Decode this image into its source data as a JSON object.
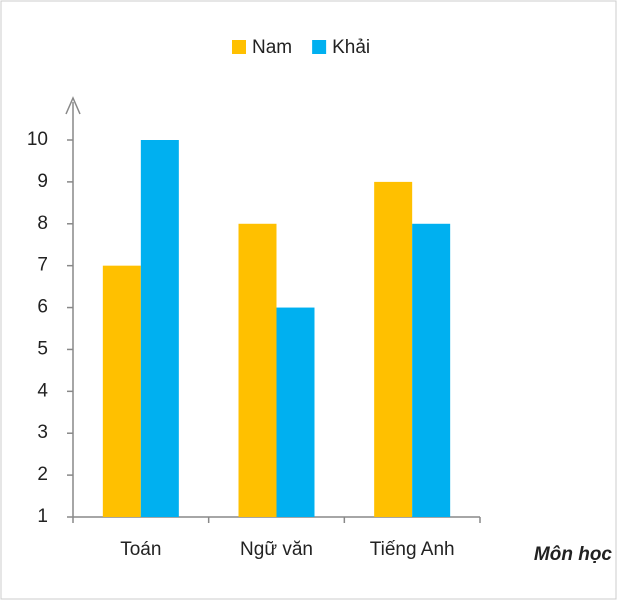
{
  "chart_data": {
    "type": "bar",
    "categories": [
      "Toán",
      "Ngữ văn",
      "Tiếng Anh"
    ],
    "series": [
      {
        "name": "Nam",
        "color": "#ffc000",
        "values": [
          7,
          8,
          9
        ]
      },
      {
        "name": "Khải",
        "color": "#00b0f0",
        "values": [
          10,
          6,
          8
        ]
      }
    ],
    "xlabel": "Môn học",
    "ylim": [
      1,
      10
    ],
    "yticks": [
      1,
      2,
      3,
      4,
      5,
      6,
      7,
      8,
      9,
      10
    ],
    "legend": "top",
    "grid": false
  }
}
